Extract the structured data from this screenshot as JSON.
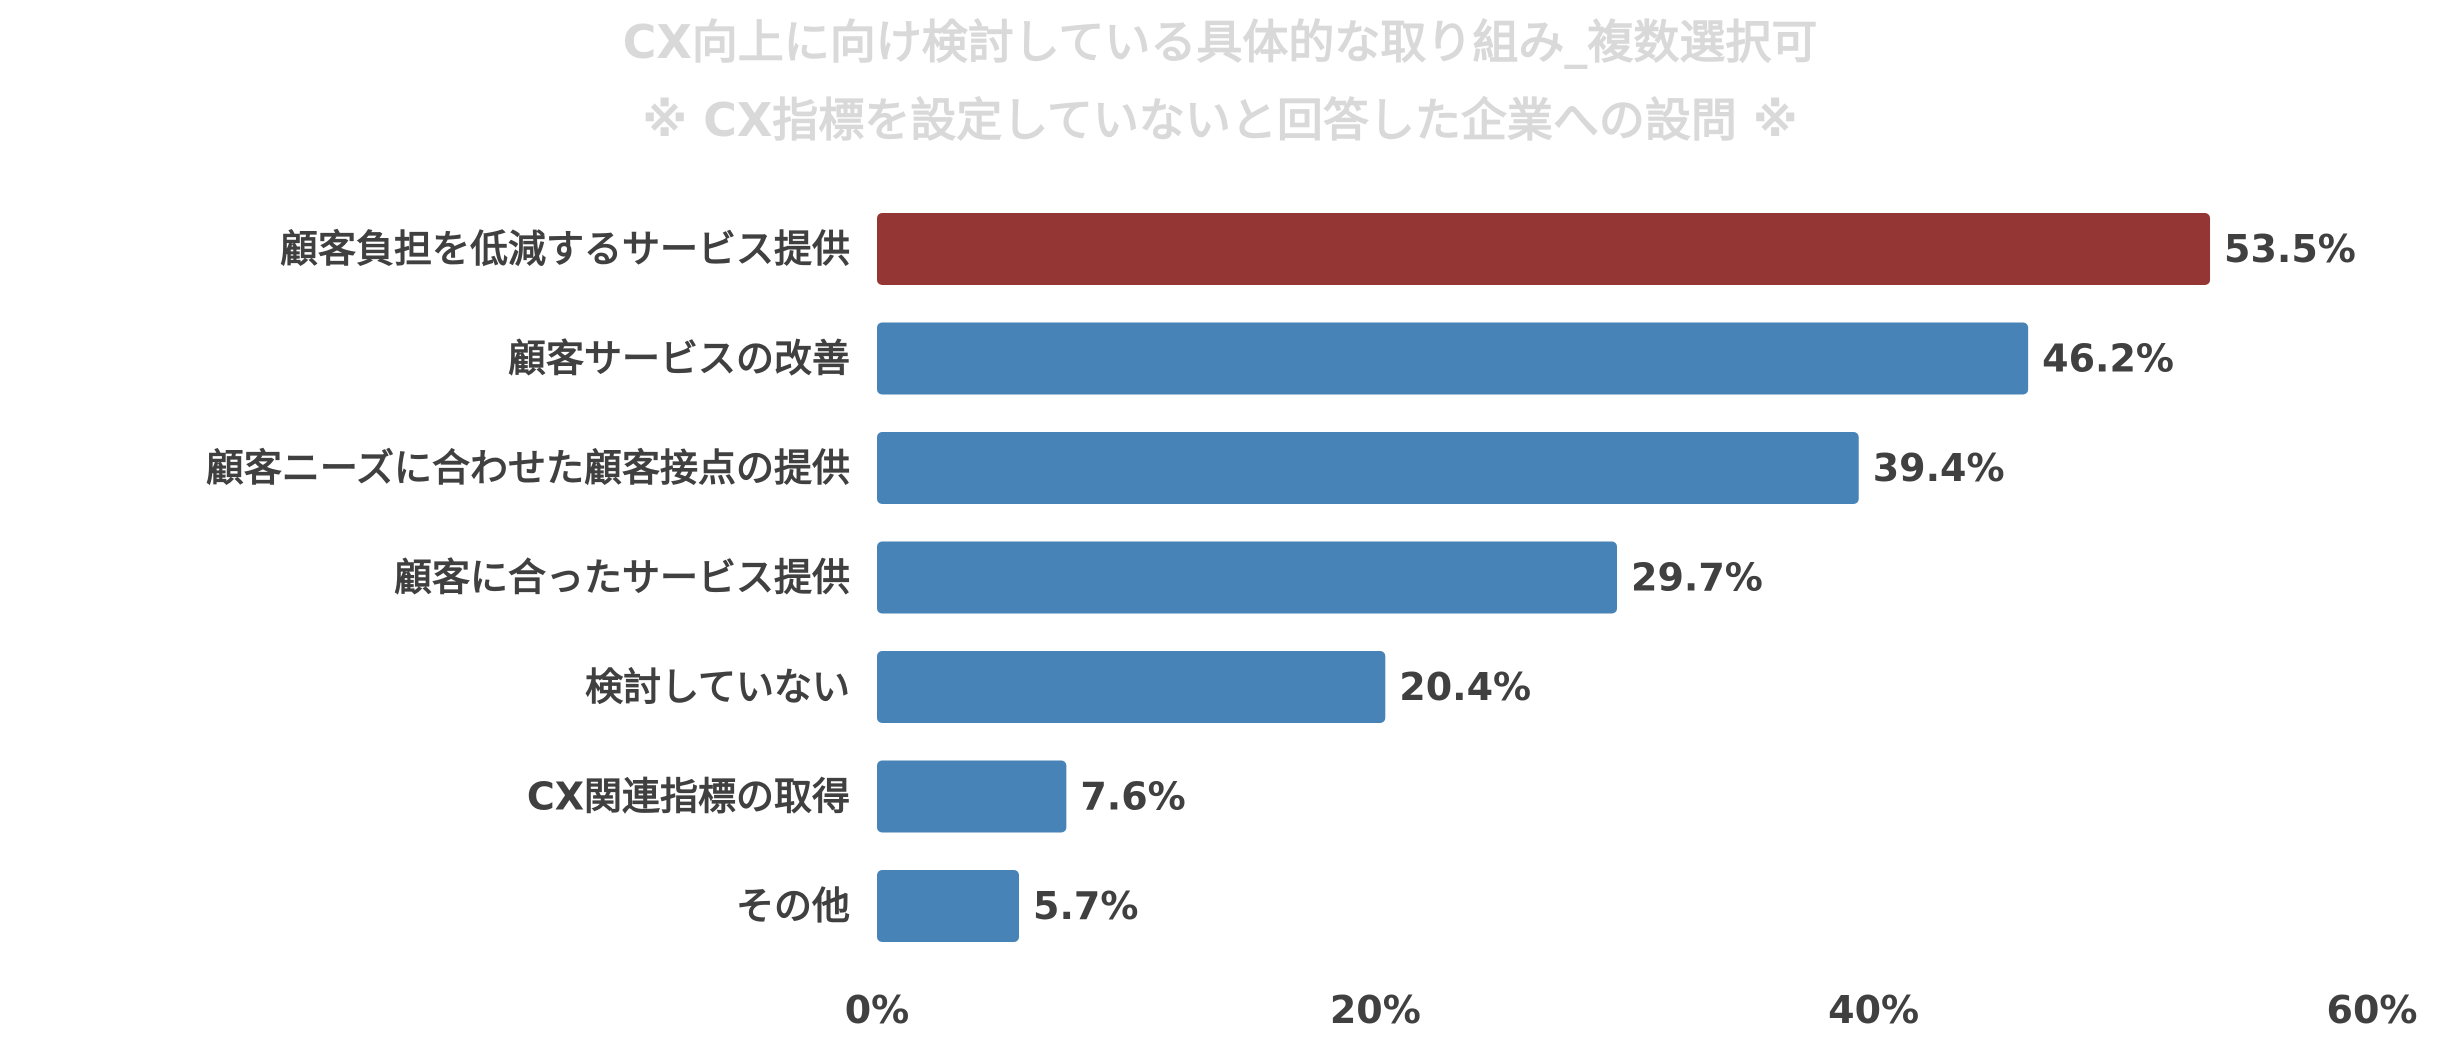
{
  "chart_data": {
    "type": "bar",
    "orientation": "horizontal",
    "title": "CX向上に向け検討している具体的な取り組み_複数選択可",
    "subtitle": "※ CX指標を設定していないと回答した企業への設問 ※",
    "categories": [
      "顧客負担を低減するサービス提供",
      "顧客サービスの改善",
      "顧客ニーズに合わせた顧客接点の提供",
      "顧客に合ったサービス提供",
      "検討していない",
      "CX関連指標の取得",
      "その他"
    ],
    "values": [
      53.5,
      46.2,
      39.4,
      29.7,
      20.4,
      7.6,
      5.7
    ],
    "value_labels": [
      "53.5%",
      "46.2%",
      "39.4%",
      "29.7%",
      "20.4%",
      "7.6%",
      "5.7%"
    ],
    "xlim": [
      0,
      60
    ],
    "x_ticks": [
      0,
      20,
      40,
      60
    ],
    "x_tick_labels": [
      "0%",
      "20%",
      "40%",
      "60%"
    ],
    "grid": false,
    "legend": "none",
    "colors": {
      "highlight": "#943634",
      "default": "#4783B6",
      "highlight_label": "#943634",
      "label": "#404040",
      "title": "#d9d9d9"
    },
    "highlight_index": 0
  }
}
